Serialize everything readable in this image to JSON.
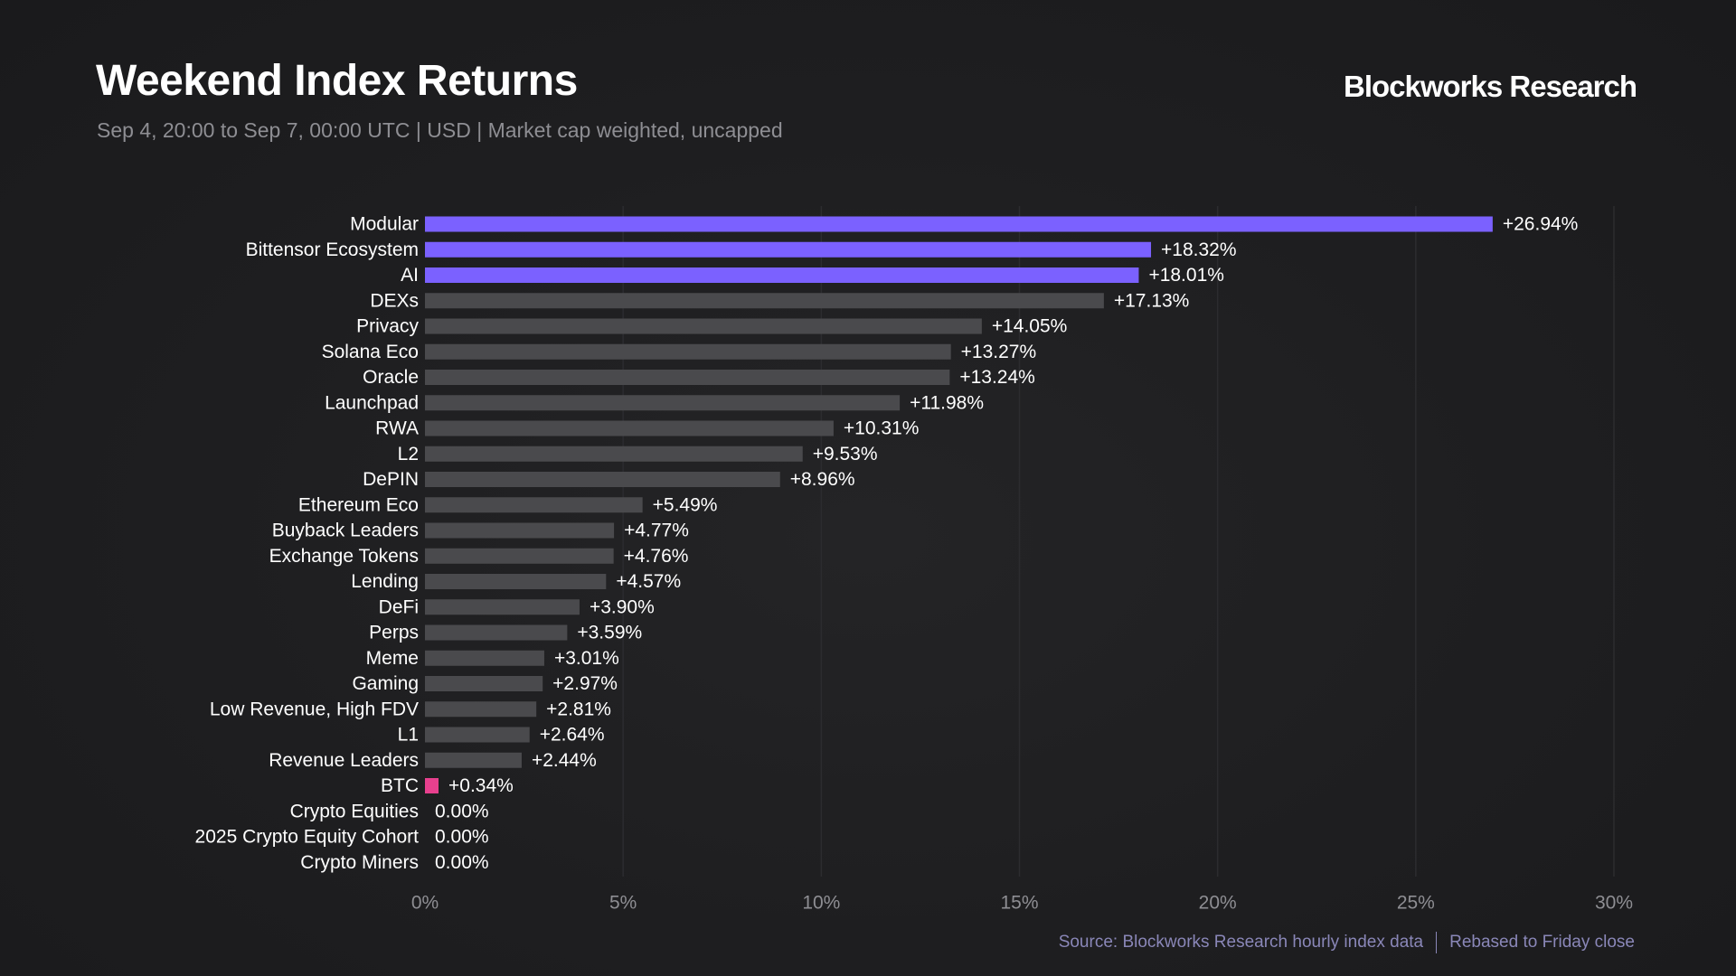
{
  "header": {
    "title": "Weekend Index Returns",
    "subtitle": "Sep 4, 20:00 to Sep 7, 00:00 UTC | USD | Market cap weighted, uncapped",
    "brand": "Blockworks Research"
  },
  "footer": {
    "source": "Source: Blockworks Research hourly index data",
    "note": "Rebased to Friday close"
  },
  "colors": {
    "highlight": "#7b61ff",
    "default": "#4a4a4d",
    "btc": "#e8408e",
    "grid": "#2c2c2f",
    "label": "#ffffff",
    "tick": "#8e8e93"
  },
  "chart_data": {
    "type": "bar",
    "orientation": "horizontal",
    "categories": [
      "Modular",
      "Bittensor Ecosystem",
      "AI",
      "DEXs",
      "Privacy",
      "Solana Eco",
      "Oracle",
      "Launchpad",
      "RWA",
      "L2",
      "DePIN",
      "Ethereum Eco",
      "Buyback Leaders",
      "Exchange Tokens",
      "Lending",
      "DeFi",
      "Perps",
      "Meme",
      "Gaming",
      "Low Revenue, High FDV",
      "L1",
      "Revenue Leaders",
      "BTC",
      "Crypto Equities",
      "2025 Crypto Equity Cohort",
      "Crypto Miners"
    ],
    "values": [
      26.94,
      18.32,
      18.01,
      17.13,
      14.05,
      13.27,
      13.24,
      11.98,
      10.31,
      9.53,
      8.96,
      5.49,
      4.77,
      4.76,
      4.57,
      3.9,
      3.59,
      3.01,
      2.97,
      2.81,
      2.64,
      2.44,
      0.34,
      0.0,
      0.0,
      0.0
    ],
    "labels": [
      "+26.94%",
      "+18.32%",
      "+18.01%",
      "+17.13%",
      "+14.05%",
      "+13.27%",
      "+13.24%",
      "+11.98%",
      "+10.31%",
      "+9.53%",
      "+8.96%",
      "+5.49%",
      "+4.77%",
      "+4.76%",
      "+4.57%",
      "+3.90%",
      "+3.59%",
      "+3.01%",
      "+2.97%",
      "+2.81%",
      "+2.64%",
      "+2.44%",
      "+0.34%",
      "0.00%",
      "0.00%",
      "0.00%"
    ],
    "highlight": [
      "highlight",
      "highlight",
      "highlight",
      "default",
      "default",
      "default",
      "default",
      "default",
      "default",
      "default",
      "default",
      "default",
      "default",
      "default",
      "default",
      "default",
      "default",
      "default",
      "default",
      "default",
      "default",
      "default",
      "btc",
      "default",
      "default",
      "default"
    ],
    "xlim": [
      0,
      30
    ],
    "xticks": [
      0,
      5,
      10,
      15,
      20,
      25,
      30
    ],
    "xtick_labels": [
      "0%",
      "5%",
      "10%",
      "15%",
      "20%",
      "25%",
      "30%"
    ],
    "grid": true,
    "legend": "none"
  }
}
